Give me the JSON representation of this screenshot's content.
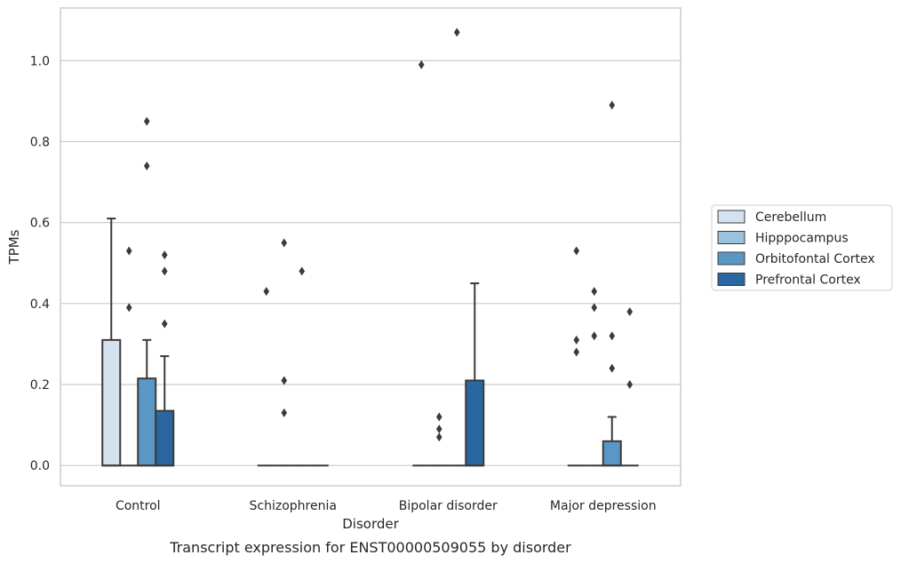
{
  "chart_data": {
    "type": "box",
    "caption": "Transcript expression for ENST00000509055 by disorder",
    "xlabel": "Disorder",
    "ylabel": "TPMs",
    "categories": [
      "Control",
      "Schizophrenia",
      "Bipolar disorder",
      "Major depression"
    ],
    "ylim": [
      -0.05,
      1.13
    ],
    "yticks": [
      0.0,
      0.2,
      0.4,
      0.6,
      0.8,
      1.0
    ],
    "ytick_labels": [
      "0.0",
      "0.2",
      "0.4",
      "0.6",
      "0.8",
      "1.0"
    ],
    "grid": "horizontal",
    "legend_position": "right",
    "series": [
      {
        "name": "Cerebellum",
        "color": "#d4e2f0",
        "boxes": [
          {
            "q1": 0,
            "median": 0,
            "q3": 0.31,
            "whisker_low": 0,
            "whisker_high": 0.61,
            "outliers": []
          },
          {
            "q1": 0,
            "median": 0,
            "q3": 0,
            "whisker_low": 0,
            "whisker_high": 0,
            "outliers": [
              0.43
            ]
          },
          {
            "q1": 0,
            "median": 0,
            "q3": 0,
            "whisker_low": 0,
            "whisker_high": 0,
            "outliers": [
              0.99
            ]
          },
          {
            "q1": 0,
            "median": 0,
            "q3": 0,
            "whisker_low": 0,
            "whisker_high": 0,
            "outliers": [
              0.53,
              0.31,
              0.28
            ]
          }
        ]
      },
      {
        "name": "Hipppocampus",
        "color": "#9ac2dc",
        "boxes": [
          {
            "q1": 0,
            "median": 0,
            "q3": 0,
            "whisker_low": 0,
            "whisker_high": 0,
            "outliers": [
              0.53,
              0.39
            ]
          },
          {
            "q1": 0,
            "median": 0,
            "q3": 0,
            "whisker_low": 0,
            "whisker_high": 0,
            "outliers": [
              0.55,
              0.21,
              0.13
            ]
          },
          {
            "q1": 0,
            "median": 0,
            "q3": 0,
            "whisker_low": 0,
            "whisker_high": 0,
            "outliers": [
              0.12,
              0.09,
              0.07
            ]
          },
          {
            "q1": 0,
            "median": 0,
            "q3": 0,
            "whisker_low": 0,
            "whisker_high": 0,
            "outliers": [
              0.43,
              0.39,
              0.32
            ]
          }
        ]
      },
      {
        "name": "Orbitofontal Cortex",
        "color": "#5b97c5",
        "boxes": [
          {
            "q1": 0,
            "median": 0,
            "q3": 0.215,
            "whisker_low": 0,
            "whisker_high": 0.31,
            "outliers": [
              0.85,
              0.74
            ]
          },
          {
            "q1": 0,
            "median": 0,
            "q3": 0,
            "whisker_low": 0,
            "whisker_high": 0,
            "outliers": [
              0.48
            ]
          },
          {
            "q1": 0,
            "median": 0,
            "q3": 0,
            "whisker_low": 0,
            "whisker_high": 0,
            "outliers": [
              1.07
            ]
          },
          {
            "q1": 0,
            "median": 0,
            "q3": 0.06,
            "whisker_low": 0,
            "whisker_high": 0.12,
            "outliers": [
              0.89,
              0.32,
              0.24
            ]
          }
        ]
      },
      {
        "name": "Prefrontal Cortex",
        "color": "#2a66a0",
        "boxes": [
          {
            "q1": 0,
            "median": 0,
            "q3": 0.135,
            "whisker_low": 0,
            "whisker_high": 0.27,
            "outliers": [
              0.52,
              0.48,
              0.35
            ]
          },
          {
            "q1": 0,
            "median": 0,
            "q3": 0,
            "whisker_low": 0,
            "whisker_high": 0,
            "outliers": []
          },
          {
            "q1": 0,
            "median": 0,
            "q3": 0.21,
            "whisker_low": 0,
            "whisker_high": 0.45,
            "outliers": []
          },
          {
            "q1": 0,
            "median": 0,
            "q3": 0,
            "whisker_low": 0,
            "whisker_high": 0,
            "outliers": [
              0.38,
              0.2
            ]
          }
        ]
      }
    ],
    "colors": {
      "grid": "#cccccc",
      "frame": "#cccccc",
      "line": "#3b3b3b",
      "text": "#262626"
    }
  }
}
